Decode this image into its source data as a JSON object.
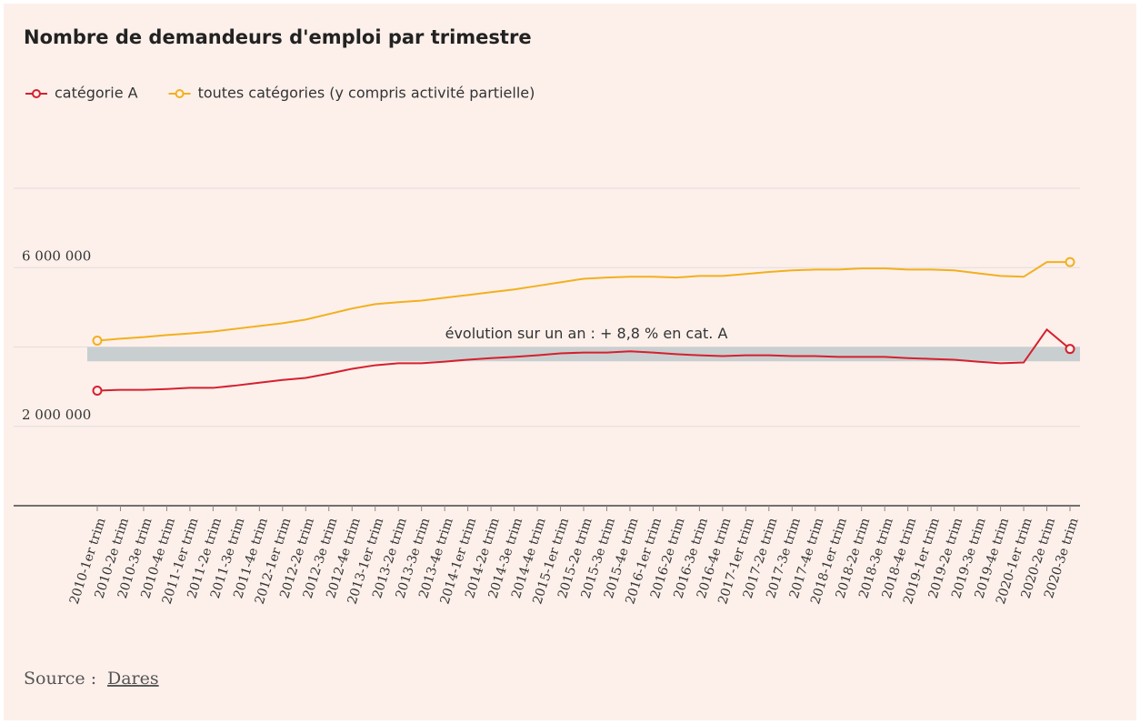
{
  "chart_data": {
    "type": "line",
    "title": "Nombre de demandeurs d'emploi par trimestre",
    "categories": [
      "2010-1er trim",
      "2010-2e trim",
      "2010-3e trim",
      "2010-4e trim",
      "2011-1er trim",
      "2011-2e trim",
      "2011-3e trim",
      "2011-4e trim",
      "2012-1er trim",
      "2012-2e trim",
      "2012-3e trim",
      "2012-4e trim",
      "2013-1er trim",
      "2013-2e trim",
      "2013-3e trim",
      "2013-4e trim",
      "2014-1er trim",
      "2014-2e trim",
      "2014-3e trim",
      "2014-4e trim",
      "2015-1er trim",
      "2015-2e trim",
      "2015-3e trim",
      "2015-4e trim",
      "2016-1er trim",
      "2016-2e trim",
      "2016-3e trim",
      "2016-4e trim",
      "2017-1er trim",
      "2017-2e trim",
      "2017-3e trim",
      "2017-4e trim",
      "2018-1er trim",
      "2018-2e trim",
      "2018-3e trim",
      "2018-4e trim",
      "2019-1er trim",
      "2019-2e trim",
      "2019-3e trim",
      "2019-4e trim",
      "2020-1er trim",
      "2020-2e trim",
      "2020-3e trim"
    ],
    "series": [
      {
        "name": "catégorie A",
        "color": "#d5202e",
        "values": [
          2900000,
          2920000,
          2920000,
          2940000,
          2970000,
          2970000,
          3030000,
          3100000,
          3170000,
          3220000,
          3330000,
          3450000,
          3540000,
          3590000,
          3590000,
          3630000,
          3680000,
          3720000,
          3750000,
          3790000,
          3840000,
          3860000,
          3860000,
          3890000,
          3860000,
          3820000,
          3790000,
          3770000,
          3790000,
          3790000,
          3770000,
          3770000,
          3750000,
          3750000,
          3750000,
          3720000,
          3700000,
          3680000,
          3630000,
          3590000,
          3610000,
          4440000,
          3950000
        ]
      },
      {
        "name": "toutes catégories (y compris activité partielle)",
        "color": "#f2b01e",
        "values": [
          4160000,
          4210000,
          4250000,
          4300000,
          4340000,
          4390000,
          4460000,
          4530000,
          4600000,
          4690000,
          4830000,
          4970000,
          5080000,
          5130000,
          5170000,
          5240000,
          5310000,
          5380000,
          5450000,
          5540000,
          5630000,
          5720000,
          5750000,
          5770000,
          5770000,
          5750000,
          5790000,
          5790000,
          5840000,
          5890000,
          5930000,
          5950000,
          5950000,
          5980000,
          5980000,
          5950000,
          5950000,
          5930000,
          5860000,
          5790000,
          5770000,
          6140000,
          6140000
        ]
      }
    ],
    "ylim": [
      0,
      8000000
    ],
    "yticks": [
      {
        "value": 2000000,
        "label": "2 000 000"
      },
      {
        "value": 6000000,
        "label": "6 000 000"
      }
    ],
    "grid_lines": [
      0,
      2000000,
      4000000,
      6000000,
      8000000
    ],
    "annotation": {
      "text": "évolution sur un an : + 8,8 % en cat. A",
      "band": [
        3640000,
        4000000
      ]
    },
    "source": {
      "label": "Source :",
      "link": "Dares"
    }
  }
}
